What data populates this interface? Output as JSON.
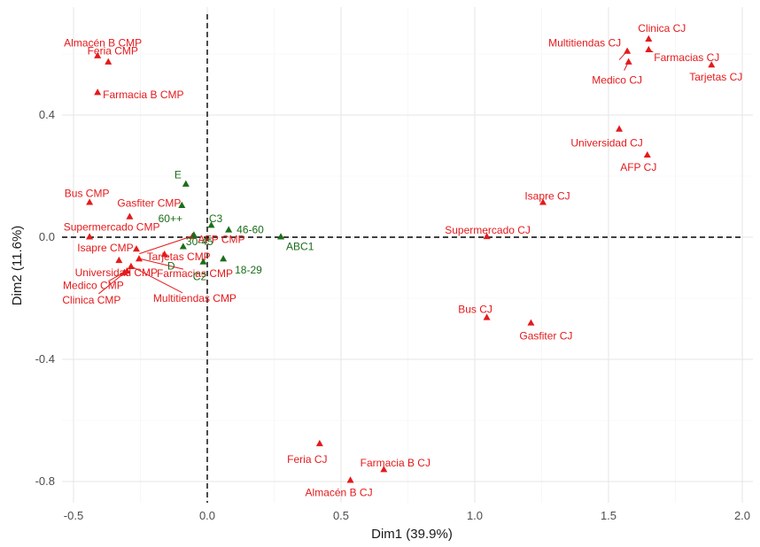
{
  "chart_data": {
    "type": "scatter",
    "title": "",
    "xlabel": "Dim1 (39.9%)",
    "ylabel": "Dim2 (11.6%)",
    "xlim": [
      -0.55,
      2.0
    ],
    "ylim": [
      -0.88,
      0.72
    ],
    "xticks": [
      -0.5,
      0.0,
      0.5,
      1.0,
      1.5,
      2.0
    ],
    "xtick_labels": [
      "-0.5",
      "0.0",
      "0.5",
      "1.0",
      "1.5",
      "2.0"
    ],
    "yticks": [
      -0.8,
      -0.4,
      0.0,
      0.4
    ],
    "ytick_labels": [
      "-0.8",
      "-0.4",
      "0.0",
      "0.4"
    ],
    "grid": true,
    "reference_lines": {
      "x": 0,
      "y": 0,
      "style": "dashed"
    },
    "marker": "triangle",
    "series": [
      {
        "color": "#e41a1c",
        "points": [
          {
            "label": "Almacén B CMP",
            "x": -0.41,
            "y": 0.595
          },
          {
            "label": "Feria CMP",
            "x": -0.37,
            "y": 0.575
          },
          {
            "label": "Farmacia B CMP",
            "x": -0.41,
            "y": 0.475
          },
          {
            "label": "Bus CMP",
            "x": -0.44,
            "y": 0.115
          },
          {
            "label": "Gasfiter CMP",
            "x": -0.29,
            "y": 0.068
          },
          {
            "label": "Supermercado CMP",
            "x": -0.44,
            "y": 0.002
          },
          {
            "label": "AFP CMP",
            "x": -0.055,
            "y": 0.004
          },
          {
            "label": "Isapre CMP",
            "x": -0.265,
            "y": -0.038
          },
          {
            "label": "Tarjetas CMP",
            "x": -0.16,
            "y": -0.055
          },
          {
            "label": "Universidad CMP",
            "x": -0.33,
            "y": -0.075
          },
          {
            "label": "Medico CMP",
            "x": -0.31,
            "y": -0.115
          },
          {
            "label": "Clinica CMP",
            "x": -0.3,
            "y": -0.11
          },
          {
            "label": "Farmacias CMP",
            "x": -0.255,
            "y": -0.07
          },
          {
            "label": "Multitiendas CMP",
            "x": -0.285,
            "y": -0.095
          },
          {
            "label": "Clinica CJ",
            "x": 1.65,
            "y": 0.65
          },
          {
            "label": "Multitiendas CJ",
            "x": 1.57,
            "y": 0.61
          },
          {
            "label": "Farmacias CJ",
            "x": 1.65,
            "y": 0.615
          },
          {
            "label": "Medico CJ",
            "x": 1.575,
            "y": 0.575
          },
          {
            "label": "Tarjetas CJ",
            "x": 1.885,
            "y": 0.565
          },
          {
            "label": "Universidad CJ",
            "x": 1.54,
            "y": 0.355
          },
          {
            "label": "AFP CJ",
            "x": 1.645,
            "y": 0.27
          },
          {
            "label": "Isapre CJ",
            "x": 1.255,
            "y": 0.115
          },
          {
            "label": "Supermercado CJ",
            "x": 1.045,
            "y": 0.003
          },
          {
            "label": "Bus CJ",
            "x": 1.045,
            "y": -0.262
          },
          {
            "label": "Gasfiter CJ",
            "x": 1.21,
            "y": -0.28
          },
          {
            "label": "Feria CJ",
            "x": 0.42,
            "y": -0.675
          },
          {
            "label": "Farmacia B CJ",
            "x": 0.66,
            "y": -0.76
          },
          {
            "label": "Almacén B CJ",
            "x": 0.535,
            "y": -0.795
          }
        ]
      },
      {
        "color": "#1a6e1a",
        "points": [
          {
            "label": "E",
            "x": -0.08,
            "y": 0.175
          },
          {
            "label": "60++",
            "x": -0.095,
            "y": 0.105
          },
          {
            "label": "C3",
            "x": 0.015,
            "y": 0.04
          },
          {
            "label": "46-60",
            "x": 0.08,
            "y": 0.025
          },
          {
            "label": "ABC1",
            "x": 0.275,
            "y": 0.002
          },
          {
            "label": "30-45",
            "x": -0.05,
            "y": 0.008
          },
          {
            "label": "D",
            "x": -0.09,
            "y": -0.03
          },
          {
            "label": "18-29",
            "x": 0.06,
            "y": -0.07
          },
          {
            "label": "C2",
            "x": -0.015,
            "y": -0.08
          }
        ]
      }
    ]
  }
}
